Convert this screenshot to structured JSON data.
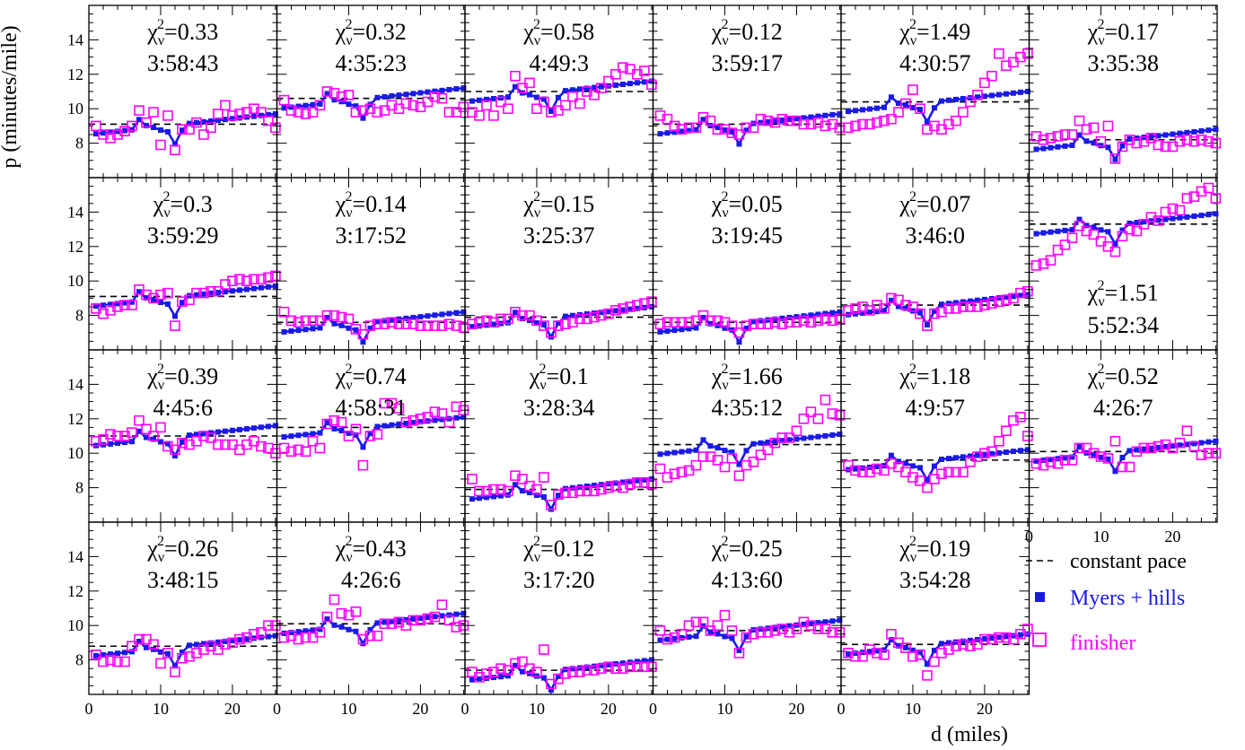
{
  "chart_data": {
    "type": "scatter",
    "layout": "4x6 small-multiples grid",
    "xlabel": "d (miles)",
    "ylabel": "p (minutes/mile)",
    "xlim": [
      0,
      26.2
    ],
    "ylim": [
      6,
      16
    ],
    "x_ticks": [
      "0",
      "10",
      "20"
    ],
    "y_ticks": [
      "8",
      "10",
      "12",
      "14"
    ],
    "legend": [
      {
        "name": "constant pace",
        "style": "dashed-black",
        "color": "#000000"
      },
      {
        "name": "Myers + hills",
        "style": "filled-square-line",
        "color": "#1a1ae6"
      },
      {
        "name": "finisher",
        "style": "open-square",
        "color": "#ff00ff"
      }
    ],
    "legend_placement": "bottom-right",
    "miles": [
      1,
      2,
      3,
      4,
      5,
      6,
      7,
      8,
      9,
      10,
      11,
      12,
      13,
      14,
      15,
      16,
      17,
      18,
      19,
      20,
      21,
      22,
      23,
      24,
      25,
      26
    ],
    "panels": [
      {
        "chi": "0.33",
        "time": "3:58:43",
        "pace": 9.1,
        "finisher": [
          9.0,
          8.5,
          8.3,
          8.5,
          8.7,
          9.0,
          9.9,
          9.2,
          9.8,
          7.9,
          9.6,
          7.6,
          8.8,
          8.8,
          9.2,
          8.5,
          8.9,
          9.7,
          10.2,
          9.6,
          9.7,
          9.8,
          10.0,
          9.8,
          9.3,
          8.9
        ]
      },
      {
        "chi": "0.32",
        "time": "4:35:23",
        "pace": 10.6,
        "finisher": [
          10.5,
          9.9,
          9.8,
          9.7,
          9.8,
          10.2,
          11.0,
          10.9,
          10.7,
          10.8,
          9.8,
          9.9,
          10.0,
          9.8,
          9.9,
          10.2,
          10.0,
          10.3,
          10.2,
          10.1,
          10.4,
          10.7,
          10.6,
          9.8,
          9.8,
          10.1
        ]
      },
      {
        "chi": "0.58",
        "time": "4:49:3",
        "pace": 11.0,
        "finisher": [
          9.8,
          9.6,
          10.2,
          9.6,
          10.4,
          10.0,
          11.9,
          11.2,
          11.5,
          10.0,
          10.4,
          9.8,
          9.9,
          10.2,
          10.7,
          10.3,
          11.0,
          10.8,
          11.2,
          11.6,
          12.0,
          12.4,
          12.3,
          12.0,
          12.2,
          11.4
        ]
      },
      {
        "chi": "0.12",
        "time": "3:59:17",
        "pace": 9.1,
        "finisher": [
          9.6,
          9.4,
          9.0,
          8.8,
          8.9,
          8.9,
          9.5,
          9.3,
          8.8,
          8.8,
          8.6,
          8.5,
          8.9,
          8.9,
          9.4,
          9.3,
          9.2,
          9.4,
          9.3,
          9.3,
          9.1,
          9.1,
          9.2,
          9.0,
          9.1,
          8.9
        ]
      },
      {
        "chi": "1.49",
        "time": "4:30:57",
        "pace": 10.4,
        "finisher": [
          8.9,
          9.0,
          9.1,
          9.1,
          9.2,
          9.3,
          9.4,
          9.8,
          10.3,
          11.1,
          10.0,
          8.8,
          9.0,
          8.8,
          9.1,
          9.3,
          9.8,
          10.4,
          10.8,
          11.5,
          11.9,
          13.2,
          12.5,
          12.7,
          13.0,
          13.2
        ]
      },
      {
        "chi": "0.17",
        "time": "3:35:38",
        "pace": 8.2,
        "finisher": [
          8.4,
          8.2,
          8.3,
          8.4,
          8.5,
          8.5,
          9.3,
          8.8,
          8.9,
          8.1,
          9.0,
          7.1,
          7.8,
          8.2,
          8.0,
          8.1,
          8.3,
          7.9,
          7.8,
          7.8,
          8.1,
          8.2,
          8.1,
          8.2,
          8.1,
          8.0
        ]
      },
      {
        "chi": "0.3",
        "time": "3:59:29",
        "pace": 9.1,
        "finisher": [
          8.4,
          8.1,
          8.3,
          8.5,
          8.6,
          8.6,
          9.5,
          9.2,
          9.0,
          9.2,
          9.3,
          7.4,
          8.8,
          8.9,
          9.3,
          9.3,
          9.4,
          9.4,
          9.8,
          10.0,
          10.1,
          10.0,
          10.1,
          10.1,
          10.2,
          10.3
        ]
      },
      {
        "chi": "0.14",
        "time": "3:17:52",
        "pace": 7.6,
        "finisher": [
          8.2,
          7.7,
          7.6,
          7.7,
          7.7,
          7.7,
          8.0,
          8.0,
          7.9,
          7.8,
          7.2,
          6.9,
          7.4,
          7.5,
          7.5,
          7.6,
          7.5,
          7.5,
          7.5,
          7.4,
          7.4,
          7.4,
          7.4,
          7.5,
          7.4,
          7.3
        ]
      },
      {
        "chi": "0.15",
        "time": "3:25:37",
        "pace": 7.9,
        "finisher": [
          7.5,
          7.6,
          7.7,
          7.6,
          7.8,
          7.8,
          8.2,
          8.0,
          8.0,
          7.7,
          7.4,
          7.0,
          7.4,
          7.5,
          7.6,
          7.8,
          7.8,
          7.9,
          8.0,
          8.1,
          8.3,
          8.4,
          8.5,
          8.6,
          8.7,
          8.8
        ]
      },
      {
        "chi": "0.05",
        "time": "3:19:45",
        "pace": 7.6,
        "finisher": [
          7.5,
          7.6,
          7.6,
          7.6,
          7.6,
          7.7,
          8.0,
          7.7,
          7.7,
          7.6,
          7.4,
          7.0,
          7.4,
          7.5,
          7.5,
          7.5,
          7.6,
          7.5,
          7.6,
          7.6,
          7.7,
          7.6,
          7.7,
          7.8,
          7.7,
          7.8
        ]
      },
      {
        "chi": "0.07",
        "time": "3:46:0",
        "pace": 8.6,
        "finisher": [
          8.3,
          8.4,
          8.5,
          8.3,
          8.6,
          8.4,
          9.0,
          8.9,
          8.6,
          8.5,
          8.1,
          7.4,
          8.1,
          8.2,
          8.4,
          8.4,
          8.5,
          8.5,
          8.5,
          8.6,
          8.7,
          8.8,
          8.9,
          9.0,
          9.3,
          9.4
        ]
      },
      {
        "chi": "1.51",
        "time": "5:52:34",
        "pace": 13.3,
        "finisher": [
          10.9,
          11.0,
          11.2,
          11.8,
          12.1,
          12.5,
          13.2,
          12.9,
          12.7,
          12.3,
          12.0,
          11.7,
          12.6,
          13.0,
          12.9,
          13.3,
          13.7,
          13.5,
          14.0,
          14.2,
          14.1,
          14.8,
          14.9,
          15.2,
          15.4,
          14.8
        ]
      },
      {
        "chi": "0.39",
        "time": "4:45:6",
        "pace": 11.0,
        "finisher": [
          10.7,
          10.8,
          11.1,
          11.0,
          11.0,
          11.2,
          11.9,
          11.4,
          11.0,
          11.5,
          10.4,
          10.2,
          10.6,
          10.5,
          10.7,
          11.0,
          10.9,
          10.5,
          10.5,
          10.5,
          10.2,
          10.5,
          10.7,
          10.4,
          10.3,
          10.0
        ]
      },
      {
        "chi": "0.74",
        "time": "4:58:31",
        "pace": 11.5,
        "finisher": [
          10.3,
          10.1,
          10.2,
          10.1,
          10.7,
          10.3,
          11.7,
          11.9,
          11.8,
          11.0,
          11.4,
          9.3,
          11.0,
          11.1,
          12.9,
          12.9,
          12.6,
          11.8,
          11.9,
          12.0,
          12.1,
          12.4,
          12.3,
          11.8,
          12.7,
          12.5
        ]
      },
      {
        "chi": "0.1",
        "time": "3:28:34",
        "pace": 7.9,
        "finisher": [
          8.5,
          7.8,
          7.8,
          7.9,
          7.9,
          7.8,
          8.7,
          8.5,
          8.1,
          7.9,
          8.6,
          7.0,
          7.6,
          7.7,
          7.7,
          7.8,
          7.8,
          7.8,
          7.9,
          8.0,
          8.1,
          8.0,
          8.2,
          8.3,
          8.3,
          8.2
        ]
      },
      {
        "chi": "1.66",
        "time": "4:35:12",
        "pace": 10.5,
        "finisher": [
          9.1,
          8.6,
          8.8,
          8.9,
          9.0,
          9.3,
          9.8,
          9.8,
          9.6,
          9.2,
          9.7,
          8.7,
          9.3,
          9.5,
          9.9,
          10.2,
          10.6,
          10.9,
          10.9,
          11.3,
          12.0,
          12.4,
          12.0,
          13.1,
          12.3,
          12.2
        ]
      },
      {
        "chi": "1.18",
        "time": "4:9:57",
        "pace": 9.6,
        "finisher": [
          9.3,
          9.0,
          8.9,
          8.9,
          9.1,
          9.0,
          9.4,
          9.2,
          8.9,
          8.6,
          8.4,
          8.0,
          8.5,
          8.8,
          8.9,
          8.9,
          8.9,
          9.5,
          9.8,
          10.0,
          10.1,
          10.7,
          11.3,
          11.9,
          12.1,
          11.0
        ]
      },
      {
        "chi": "0.52",
        "time": "4:26:7",
        "pace": 10.1,
        "finisher": [
          9.4,
          9.3,
          9.5,
          9.4,
          9.6,
          9.6,
          10.3,
          10.3,
          10.0,
          9.8,
          9.7,
          10.7,
          9.2,
          9.2,
          10.1,
          10.3,
          10.3,
          10.4,
          10.5,
          10.3,
          10.6,
          11.3,
          10.4,
          9.9,
          10.0,
          10.0
        ]
      },
      {
        "chi": "0.26",
        "time": "3:48:15",
        "pace": 8.8,
        "finisher": [
          8.3,
          7.9,
          8.0,
          7.9,
          7.9,
          8.8,
          9.2,
          9.2,
          8.9,
          7.8,
          8.4,
          7.3,
          8.1,
          8.2,
          8.4,
          8.6,
          8.8,
          8.6,
          8.9,
          9.0,
          9.2,
          9.3,
          9.5,
          9.6,
          10.0,
          10.0
        ]
      },
      {
        "chi": "0.43",
        "time": "4:26:6",
        "pace": 10.1,
        "finisher": [
          9.3,
          9.4,
          9.2,
          9.3,
          9.3,
          9.6,
          10.5,
          11.5,
          10.7,
          10.6,
          10.8,
          9.2,
          9.4,
          9.4,
          10.1,
          10.1,
          10.2,
          10.0,
          10.3,
          10.3,
          10.4,
          10.5,
          11.2,
          10.3,
          9.9,
          10.0
        ]
      },
      {
        "chi": "0.12",
        "time": "3:17:20",
        "pace": 7.4,
        "finisher": [
          7.3,
          7.0,
          7.2,
          7.3,
          7.5,
          7.4,
          7.8,
          7.9,
          7.5,
          7.3,
          8.6,
          6.6,
          6.9,
          7.2,
          7.3,
          7.3,
          7.4,
          7.4,
          7.5,
          7.6,
          7.5,
          7.5,
          7.6,
          7.6,
          7.6,
          7.6
        ]
      },
      {
        "chi": "0.25",
        "time": "4:13:60",
        "pace": 9.7,
        "finisher": [
          9.7,
          9.2,
          9.3,
          9.5,
          10.0,
          10.2,
          10.2,
          9.7,
          10.0,
          10.6,
          9.7,
          8.4,
          9.3,
          9.5,
          9.6,
          9.6,
          9.7,
          9.8,
          9.6,
          9.8,
          10.2,
          10.0,
          9.8,
          9.8,
          9.6,
          9.6
        ]
      },
      {
        "chi": "0.19",
        "time": "3:54:28",
        "pace": 8.9,
        "finisher": [
          8.4,
          8.2,
          8.2,
          8.6,
          8.4,
          8.3,
          9.5,
          9.0,
          8.7,
          8.2,
          8.3,
          7.1,
          7.9,
          8.4,
          8.6,
          8.8,
          8.9,
          8.8,
          8.9,
          9.2,
          9.2,
          9.3,
          9.3,
          9.2,
          9.5,
          9.8
        ]
      }
    ]
  }
}
